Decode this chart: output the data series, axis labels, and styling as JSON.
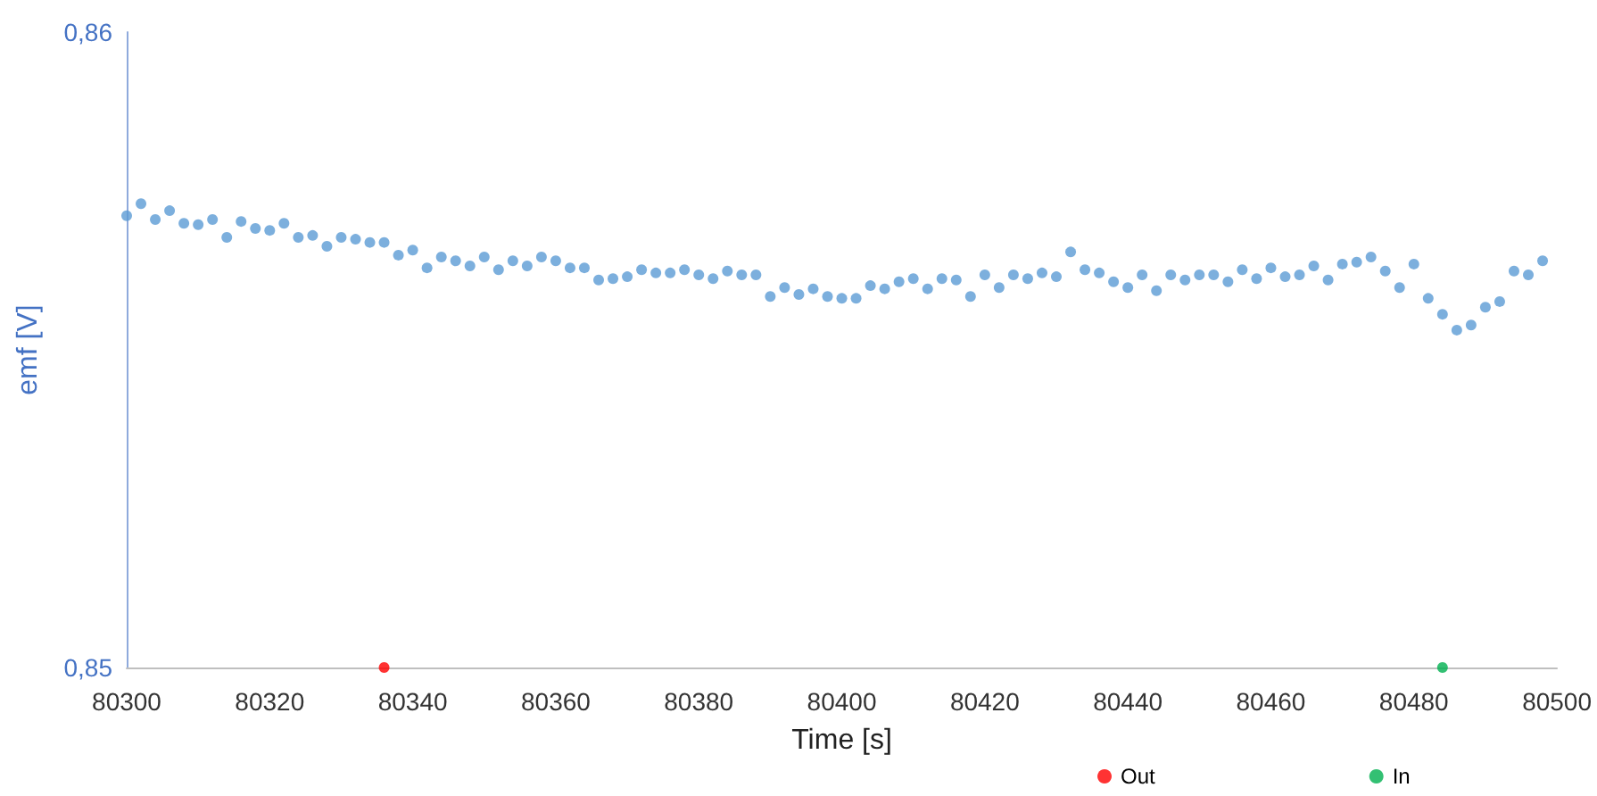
{
  "chart_data": {
    "type": "scatter",
    "xlabel": "Time [s]",
    "ylabel": "emf [V]",
    "xlim": [
      80300,
      80500
    ],
    "xticks": [
      80300,
      80320,
      80340,
      80360,
      80380,
      80400,
      80420,
      80440,
      80460,
      80480,
      80500
    ],
    "ylim": [
      0.85,
      0.86
    ],
    "yticks": [
      {
        "value": 0.85,
        "label": "0,85"
      },
      {
        "value": 0.86,
        "label": "0,86"
      }
    ],
    "grid": false,
    "legend": "bottom",
    "marker": "circle",
    "series": [
      {
        "color": "#5b9bd5",
        "x": [
          80300,
          80302,
          80304,
          80306,
          80308,
          80310,
          80312,
          80314,
          80316,
          80318,
          80320,
          80322,
          80324,
          80326,
          80328,
          80330,
          80332,
          80334,
          80336,
          80338,
          80340,
          80342,
          80344,
          80346,
          80348,
          80350,
          80352,
          80354,
          80356,
          80358,
          80360,
          80362,
          80364,
          80366,
          80368,
          80370,
          80372,
          80374,
          80376,
          80378,
          80380,
          80382,
          80384,
          80386,
          80388,
          80390,
          80392,
          80394,
          80396,
          80398,
          80400,
          80402,
          80404,
          80406,
          80408,
          80410,
          80412,
          80414,
          80416,
          80418,
          80420,
          80422,
          80424,
          80426,
          80428,
          80430,
          80432,
          80434,
          80436,
          80438,
          80440,
          80442,
          80444,
          80446,
          80448,
          80450,
          80452,
          80454,
          80456,
          80458,
          80460,
          80462,
          80464,
          80466,
          80468,
          80470,
          80472,
          80474,
          80476,
          80478,
          80480,
          80482,
          80484,
          80486,
          80488,
          80490,
          80492,
          80494,
          80496,
          80498
        ],
        "values": [
          0.85711,
          0.8573,
          0.85705,
          0.85719,
          0.85699,
          0.85697,
          0.85705,
          0.85677,
          0.85702,
          0.85691,
          0.85688,
          0.85699,
          0.85677,
          0.8568,
          0.85663,
          0.85677,
          0.85674,
          0.85669,
          0.85669,
          0.85649,
          0.85657,
          0.85629,
          0.85646,
          0.8564,
          0.85632,
          0.85646,
          0.85626,
          0.8564,
          0.85632,
          0.85646,
          0.8564,
          0.85629,
          0.85629,
          0.8561,
          0.85612,
          0.85615,
          0.85626,
          0.85621,
          0.85621,
          0.85626,
          0.85618,
          0.85612,
          0.85624,
          0.85618,
          0.85618,
          0.85584,
          0.85598,
          0.85587,
          0.85596,
          0.85584,
          0.85581,
          0.85581,
          0.85601,
          0.85596,
          0.85607,
          0.85612,
          0.85596,
          0.85612,
          0.8561,
          0.85584,
          0.85618,
          0.85598,
          0.85618,
          0.85612,
          0.85621,
          0.85615,
          0.85654,
          0.85626,
          0.85621,
          0.85607,
          0.85598,
          0.85618,
          0.85593,
          0.85618,
          0.8561,
          0.85618,
          0.85618,
          0.85607,
          0.85626,
          0.85612,
          0.85629,
          0.85615,
          0.85618,
          0.85632,
          0.8561,
          0.85635,
          0.85638,
          0.85646,
          0.85624,
          0.85598,
          0.85635,
          0.85581,
          0.85556,
          0.85531,
          0.85539,
          0.85567,
          0.85576,
          0.85624,
          0.85618,
          0.8564
        ]
      },
      {
        "name": "Out",
        "color": "#ff0000",
        "x": [
          80336
        ],
        "values": [
          0.85
        ]
      },
      {
        "name": "In",
        "color": "#00b050",
        "x": [
          80484
        ],
        "values": [
          0.85
        ]
      }
    ]
  }
}
